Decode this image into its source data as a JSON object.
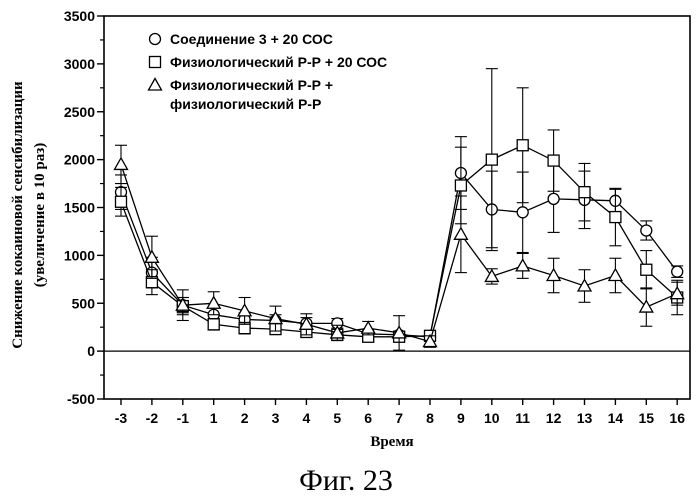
{
  "chart_data": {
    "type": "line",
    "title": "",
    "xlabel": "Время",
    "ylabel_line1": "Снижение кокаиновой сенсибилизации",
    "ylabel_line2": "(увеличение в 10 раз)",
    "caption": "Фиг. 23",
    "categories": [
      "-3",
      "-2",
      "-1",
      "1",
      "2",
      "3",
      "4",
      "5",
      "6",
      "7",
      "8",
      "9",
      "10",
      "11",
      "12",
      "13",
      "14",
      "15",
      "16"
    ],
    "yticks": [
      "3500",
      "3000",
      "2500",
      "2000",
      "1500",
      "1000",
      "500",
      "0",
      "-500"
    ],
    "ylim": [
      -500,
      3500
    ],
    "series": [
      {
        "name": "Соединение 3 + 20  СОС",
        "marker": "circle",
        "values": [
          1660,
          820,
          480,
          380,
          330,
          320,
          290,
          290,
          180,
          170,
          150,
          1860,
          1480,
          1450,
          1590,
          1580,
          1570,
          1260,
          830
        ],
        "errors": [
          180,
          160,
          80,
          70,
          70,
          60,
          60,
          50,
          40,
          40,
          40,
          380,
          400,
          420,
          350,
          300,
          120,
          100,
          60
        ]
      },
      {
        "name": "Физиологический Р-Р + 20 СОС",
        "marker": "square",
        "values": [
          1560,
          720,
          470,
          280,
          240,
          230,
          200,
          170,
          150,
          150,
          160,
          1730,
          2000,
          2150,
          1990,
          1660,
          1400,
          850,
          560
        ],
        "errors": [
          150,
          130,
          90,
          60,
          60,
          50,
          50,
          40,
          40,
          40,
          50,
          400,
          950,
          600,
          320,
          300,
          300,
          200,
          180
        ]
      },
      {
        "name": "Физиологический Р-Р + физиологический Р-Р",
        "marker": "triangle",
        "values": [
          1950,
          980,
          480,
          500,
          420,
          340,
          280,
          190,
          240,
          190,
          100,
          1220,
          780,
          890,
          790,
          680,
          790,
          460,
          600
        ],
        "errors": [
          200,
          220,
          160,
          120,
          140,
          130,
          110,
          80,
          70,
          180,
          60,
          400,
          80,
          130,
          180,
          170,
          180,
          200,
          120
        ]
      }
    ],
    "legend": {
      "placement": "top-left",
      "entries": [
        {
          "marker": "circle",
          "line1": "Соединение 3 + 20  СОС",
          "line2": ""
        },
        {
          "marker": "square",
          "line1": "Физиологический Р-Р + 20 СОС",
          "line2": ""
        },
        {
          "marker": "triangle",
          "line1": "Физиологический Р-Р +",
          "line2": "физиологический Р-Р"
        }
      ]
    }
  }
}
